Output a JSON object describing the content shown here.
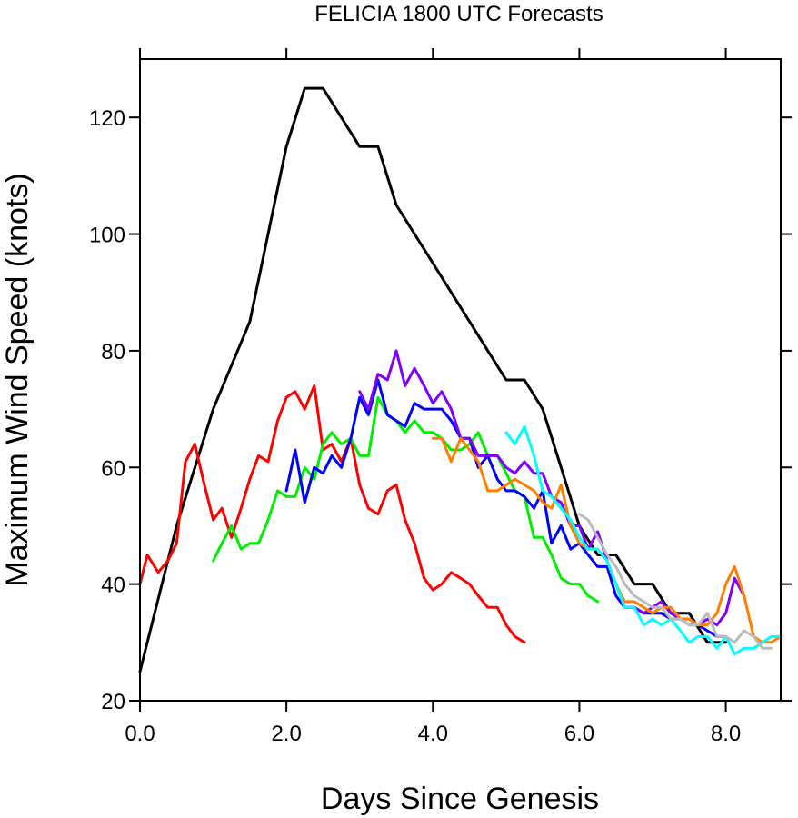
{
  "chart_data": {
    "type": "line",
    "title": "FELICIA 1800 UTC Forecasts",
    "xlabel": "Days Since Genesis",
    "ylabel": "Maximum Wind Speed (knots)",
    "xlim": [
      0,
      8.75
    ],
    "ylim": [
      20,
      130
    ],
    "x_ticks": [
      0,
      2,
      4,
      6,
      8
    ],
    "x_tick_labels": [
      "0.0",
      "2.0",
      "4.0",
      "6.0",
      "8.0"
    ],
    "y_ticks": [
      20,
      40,
      60,
      80,
      100,
      120
    ],
    "y_tick_labels": [
      "20",
      "40",
      "60",
      "80",
      "100",
      "120"
    ],
    "grid": false,
    "legend": "none",
    "series": [
      {
        "color": "#000000",
        "x": [
          0,
          0.5,
          1.0,
          1.5,
          1.75,
          2.0,
          2.25,
          2.5,
          2.75,
          3.0,
          3.25,
          3.5,
          3.75,
          4.0,
          4.25,
          4.5,
          4.75,
          5.0,
          5.25,
          5.5,
          5.75,
          6.0,
          6.25,
          6.5,
          6.75,
          7.0,
          7.25,
          7.5,
          7.75,
          8.0
        ],
        "y": [
          25,
          50,
          70,
          85,
          100,
          115,
          125,
          125,
          120,
          115,
          115,
          105,
          100,
          95,
          90,
          85,
          80,
          75,
          75,
          70,
          60,
          50,
          45,
          45,
          40,
          40,
          35,
          35,
          30,
          30
        ]
      },
      {
        "color": "#ff0000",
        "x": [
          0,
          0.1,
          0.25,
          0.38,
          0.5,
          0.62,
          0.75,
          0.88,
          1.0,
          1.12,
          1.25,
          1.38,
          1.5,
          1.62,
          1.75,
          1.88,
          2.0,
          2.12,
          2.25,
          2.38,
          2.5,
          2.62,
          2.75,
          2.88,
          3.0,
          3.12,
          3.25,
          3.38,
          3.5,
          3.62,
          3.75,
          3.88,
          4.0,
          4.12,
          4.25,
          4.38,
          4.5,
          4.62,
          4.75,
          4.88,
          5.0,
          5.12,
          5.25
        ],
        "y": [
          40,
          45,
          42,
          44,
          47,
          61,
          64,
          57,
          51,
          53,
          48,
          53,
          58,
          62,
          61,
          68,
          72,
          73,
          70,
          74,
          63,
          64,
          61,
          65,
          57,
          53,
          52,
          56,
          57,
          51,
          47,
          41,
          39,
          40,
          42,
          41,
          40,
          38,
          36,
          36,
          33,
          31,
          30
        ]
      },
      {
        "color": "#00ee00",
        "x": [
          1.0,
          1.12,
          1.25,
          1.38,
          1.5,
          1.62,
          1.75,
          1.88,
          2.0,
          2.12,
          2.25,
          2.38,
          2.5,
          2.62,
          2.75,
          2.88,
          3.0,
          3.12,
          3.25,
          3.38,
          3.5,
          3.62,
          3.75,
          3.88,
          4.0,
          4.12,
          4.25,
          4.38,
          4.5,
          4.62,
          4.75,
          4.88,
          5.0,
          5.12,
          5.25,
          5.38,
          5.5,
          5.62,
          5.75,
          5.88,
          6.0,
          6.12,
          6.25
        ],
        "y": [
          44,
          47,
          50,
          46,
          47,
          47,
          51,
          56,
          55,
          55,
          60,
          58,
          64,
          66,
          64,
          65,
          62,
          62,
          72,
          69,
          68,
          66,
          68,
          66,
          66,
          65,
          63,
          63,
          64,
          66,
          62,
          62,
          59,
          56,
          55,
          48,
          48,
          45,
          41,
          40,
          40,
          38,
          37
        ]
      },
      {
        "color": "#0000ff",
        "x": [
          2.0,
          2.12,
          2.25,
          2.38,
          2.5,
          2.62,
          2.75,
          2.88,
          3.0,
          3.12,
          3.25,
          3.38,
          3.5,
          3.62,
          3.75,
          3.88,
          4.0,
          4.12,
          4.25,
          4.38,
          4.5,
          4.62,
          4.75,
          4.88,
          5.0,
          5.12,
          5.25,
          5.38,
          5.5,
          5.62,
          5.75,
          5.88,
          6.0,
          6.12,
          6.25,
          6.38,
          6.5,
          6.62,
          6.75,
          6.88,
          7.0,
          7.12,
          7.25,
          7.38,
          7.5,
          7.62,
          7.75,
          7.88,
          8.0
        ],
        "y": [
          56,
          63,
          54,
          60,
          59,
          62,
          60,
          65,
          72,
          69,
          75,
          69,
          68,
          67,
          71,
          70,
          70,
          70,
          68,
          65,
          65,
          60,
          62,
          58,
          56,
          56,
          55,
          53,
          56,
          47,
          50,
          46,
          47,
          45,
          43,
          43,
          38,
          36,
          36,
          35,
          35,
          35,
          34,
          34,
          33,
          33,
          32,
          31,
          31
        ]
      },
      {
        "color": "#8000ff",
        "x": [
          3.0,
          3.12,
          3.25,
          3.38,
          3.5,
          3.62,
          3.75,
          3.88,
          4.0,
          4.12,
          4.25,
          4.38,
          4.5,
          4.62,
          4.75,
          4.88,
          5.0,
          5.12,
          5.25,
          5.38,
          5.5,
          5.62,
          5.75,
          5.88,
          6.0,
          6.12,
          6.25,
          6.38,
          6.5,
          6.62,
          6.75,
          6.88,
          7.0,
          7.12,
          7.25,
          7.38,
          7.5,
          7.62,
          7.75,
          7.88,
          8.0,
          8.12,
          8.25
        ],
        "y": [
          73,
          70,
          76,
          75,
          80,
          74,
          77,
          74,
          71,
          73,
          70,
          65,
          65,
          62,
          62,
          62,
          60,
          59,
          61,
          59,
          59,
          55,
          54,
          50,
          50,
          46,
          49,
          44,
          40,
          36,
          36,
          35,
          36,
          37,
          35,
          34,
          34,
          33,
          34,
          33,
          35,
          41,
          38
        ]
      },
      {
        "color": "#ff8000",
        "x": [
          4.0,
          4.12,
          4.25,
          4.38,
          4.5,
          4.62,
          4.75,
          4.88,
          5.0,
          5.12,
          5.25,
          5.38,
          5.5,
          5.62,
          5.75,
          5.88,
          6.0,
          6.12,
          6.25,
          6.38,
          6.5,
          6.62,
          6.75,
          6.88,
          7.0,
          7.12,
          7.25,
          7.38,
          7.5,
          7.62,
          7.75,
          7.88,
          8.0,
          8.12,
          8.25,
          8.38,
          8.5,
          8.62,
          8.75
        ],
        "y": [
          65,
          65,
          61,
          65,
          63,
          61,
          56,
          56,
          57,
          58,
          57,
          56,
          54,
          53,
          57,
          50,
          47,
          46,
          46,
          44,
          40,
          37,
          37,
          36,
          35,
          36,
          36,
          34,
          34,
          33,
          33,
          35,
          40,
          43,
          38,
          31,
          30,
          30,
          31
        ]
      },
      {
        "color": "#00ffff",
        "x": [
          5.0,
          5.12,
          5.25,
          5.38,
          5.5,
          5.62,
          5.75,
          5.88,
          6.0,
          6.12,
          6.25,
          6.38,
          6.5,
          6.62,
          6.75,
          6.88,
          7.0,
          7.12,
          7.25,
          7.38,
          7.5,
          7.62,
          7.75,
          7.88,
          8.0,
          8.12,
          8.25,
          8.38,
          8.5,
          8.62,
          8.75
        ],
        "y": [
          66,
          64,
          67,
          62,
          56,
          55,
          53,
          51,
          48,
          46,
          46,
          44,
          40,
          36,
          36,
          33,
          34,
          33,
          34,
          32,
          30,
          31,
          31,
          29,
          31,
          28,
          29,
          29,
          30,
          31,
          31
        ]
      },
      {
        "color": "#bbbbbb",
        "x": [
          6.0,
          6.12,
          6.25,
          6.38,
          6.5,
          6.62,
          6.75,
          6.88,
          7.0,
          7.12,
          7.25,
          7.38,
          7.5,
          7.62,
          7.75,
          7.88,
          8.0,
          8.12,
          8.25,
          8.38,
          8.5,
          8.62
        ],
        "y": [
          52,
          51,
          48,
          45,
          43,
          40,
          38,
          37,
          36,
          36,
          34,
          34,
          33,
          33,
          35,
          31,
          31,
          30,
          32,
          31,
          29,
          29
        ]
      }
    ]
  }
}
